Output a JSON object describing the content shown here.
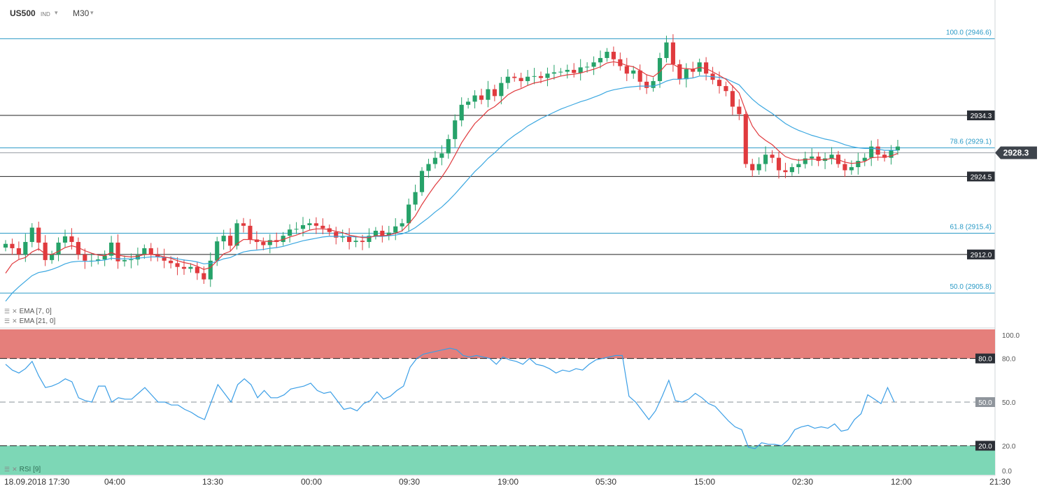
{
  "header": {
    "symbol": "US500",
    "instrument_type": "IND",
    "timeframe": "M30"
  },
  "indicators": {
    "ema_fast": "EMA [7, 0]",
    "ema_slow": "EMA [21, 0]",
    "rsi": "RSI [9]"
  },
  "icons": [
    "settings-icon",
    "close-icon",
    "dropdown-caret-icon"
  ],
  "colors": {
    "bull": "#26a269",
    "bear": "#e03a3e",
    "ema_fast": "#e03a3e",
    "ema_slow": "#3aa7e0",
    "fib": "#2a9ac6",
    "rsi_line": "#3a9ee6",
    "overbought_zone": "#e57f7b",
    "oversold_zone": "#7dd7b6"
  },
  "chart_data": [
    {
      "type": "candlestick",
      "title": "US500 M30",
      "ylim": [
        2903.8,
        2950.0
      ],
      "x_tick_labels": [
        "18.09.2018  17:30",
        "04:00",
        "13:30",
        "00:00",
        "09:30",
        "19:00",
        "05:30",
        "15:00",
        "02:30",
        "12:00",
        "21:30"
      ],
      "current_price": "2928.3",
      "horizontal_levels": [
        "2934.3",
        "2924.5",
        "2912.0"
      ],
      "fibonacci_levels": [
        {
          "label": "100.0 (2946.6)",
          "value": 2946.6
        },
        {
          "label": "78.6 (2929.1)",
          "value": 2929.1
        },
        {
          "label": "61.8 (2915.4)",
          "value": 2915.4
        },
        {
          "label": "50.0 (2905.8)",
          "value": 2905.8
        }
      ],
      "close": [
        2913.7,
        2913.0,
        2912.0,
        2914.0,
        2916.3,
        2913.9,
        2911.1,
        2912.0,
        2913.9,
        2914.9,
        2914.0,
        2912.0,
        2911.0,
        2911.0,
        2911.2,
        2911.8,
        2913.9,
        2910.9,
        2911.1,
        2911.2,
        2911.9,
        2913.0,
        2912.0,
        2911.6,
        2911.0,
        2910.6,
        2910.0,
        2909.7,
        2910.0,
        2909.0,
        2908.0,
        2911.0,
        2914.1,
        2915.0,
        2913.4,
        2917.0,
        2916.6,
        2914.4,
        2914.0,
        2913.5,
        2914.3,
        2914.0,
        2915.0,
        2916.0,
        2916.1,
        2916.7,
        2917.0,
        2916.6,
        2916.2,
        2915.6,
        2914.7,
        2914.9,
        2914.0,
        2914.2,
        2914.0,
        2915.0,
        2915.8,
        2915.0,
        2915.5,
        2916.5,
        2917.0,
        2920.0,
        2922.0,
        2925.4,
        2926.5,
        2927.5,
        2928.2,
        2930.5,
        2933.5,
        2936.0,
        2936.5,
        2937.5,
        2936.8,
        2938.5,
        2937.4,
        2939.5,
        2940.5,
        2940.3,
        2939.8,
        2940.5,
        2940.6,
        2940.3,
        2941.0,
        2941.2,
        2941.3,
        2941.6,
        2941.1,
        2942.0,
        2942.1,
        2942.8,
        2943.5,
        2944.5,
        2943.3,
        2942.2,
        2941.0,
        2941.5,
        2939.7,
        2938.7,
        2939.8,
        2943.5,
        2946.0,
        2942.5,
        2940.1,
        2941.7,
        2941.3,
        2942.8,
        2941.0,
        2940.0,
        2939.0,
        2938.2,
        2935.7,
        2934.5,
        2926.5,
        2925.5,
        2926.5,
        2928.0,
        2927.5,
        2925.5,
        2925.2,
        2926.0,
        2926.5,
        2927.4,
        2927.7,
        2927.0,
        2927.4,
        2928.0,
        2926.5,
        2925.5,
        2926.0,
        2927.0,
        2927.5,
        2929.3,
        2928.0,
        2927.5,
        2928.7,
        2929.3
      ],
      "ema_fast": [
        2909.0,
        2910.5,
        2911.2,
        2911.5,
        2912.4,
        2912.9,
        2912.1,
        2912.0,
        2912.5,
        2913.1,
        2913.4,
        2913.1,
        2912.6,
        2912.2,
        2911.9,
        2911.8,
        2912.3,
        2911.9,
        2911.7,
        2911.6,
        2911.7,
        2912.0,
        2912.0,
        2911.9,
        2911.6,
        2911.4,
        2911.0,
        2910.7,
        2910.5,
        2910.1,
        2909.6,
        2909.9,
        2911.0,
        2912.1,
        2912.5,
        2913.7,
        2914.4,
        2914.4,
        2914.3,
        2914.1,
        2914.1,
        2914.1,
        2914.4,
        2914.8,
        2915.1,
        2915.5,
        2915.9,
        2916.1,
        2916.1,
        2916.0,
        2915.7,
        2915.5,
        2915.1,
        2914.9,
        2914.7,
        2914.7,
        2915.0,
        2915.0,
        2915.1,
        2915.4,
        2915.8,
        2916.9,
        2918.2,
        2920.0,
        2921.6,
        2923.1,
        2924.4,
        2926.0,
        2927.9,
        2929.9,
        2931.5,
        2933.0,
        2934.0,
        2935.1,
        2935.7,
        2936.6,
        2937.6,
        2938.2,
        2938.6,
        2939.1,
        2939.5,
        2939.7,
        2940.0,
        2940.3,
        2940.6,
        2940.8,
        2940.9,
        2941.1,
        2941.4,
        2941.7,
        2942.1,
        2942.7,
        2942.9,
        2942.7,
        2942.3,
        2942.1,
        2941.5,
        2940.8,
        2940.5,
        2941.3,
        2942.5,
        2942.5,
        2941.9,
        2941.8,
        2941.7,
        2942.0,
        2941.8,
        2941.3,
        2940.7,
        2940.1,
        2939.0,
        2937.9,
        2935.0,
        2932.6,
        2931.1,
        2930.3,
        2929.6,
        2928.6,
        2927.7,
        2927.3,
        2927.1,
        2927.2,
        2927.3,
        2927.2,
        2927.2,
        2927.4,
        2927.2,
        2926.8,
        2926.6,
        2926.7,
        2926.9,
        2927.5,
        2927.6,
        2927.6,
        2927.8,
        2928.2
      ],
      "ema_slow": [
        2904.5,
        2905.8,
        2906.8,
        2907.7,
        2908.6,
        2909.1,
        2909.3,
        2909.6,
        2910.0,
        2910.5,
        2910.8,
        2910.9,
        2910.9,
        2910.9,
        2911.0,
        2911.1,
        2911.4,
        2911.3,
        2911.3,
        2911.3,
        2911.4,
        2911.5,
        2911.6,
        2911.6,
        2911.5,
        2911.5,
        2911.3,
        2911.1,
        2911.0,
        2910.8,
        2910.5,
        2910.6,
        2910.9,
        2911.3,
        2911.5,
        2912.0,
        2912.4,
        2912.6,
        2912.7,
        2912.8,
        2913.0,
        2913.1,
        2913.3,
        2913.6,
        2913.9,
        2914.2,
        2914.4,
        2914.6,
        2914.8,
        2914.9,
        2914.9,
        2914.9,
        2914.9,
        2914.8,
        2914.8,
        2914.8,
        2914.9,
        2914.9,
        2915.0,
        2915.1,
        2915.3,
        2915.7,
        2916.3,
        2917.1,
        2917.9,
        2918.8,
        2919.6,
        2920.6,
        2921.7,
        2922.9,
        2924.1,
        2925.3,
        2926.3,
        2927.4,
        2928.3,
        2929.3,
        2930.3,
        2931.1,
        2931.8,
        2932.6,
        2933.2,
        2933.8,
        2934.3,
        2934.8,
        2935.3,
        2935.7,
        2936.1,
        2936.5,
        2936.8,
        2937.2,
        2937.6,
        2938.1,
        2938.4,
        2938.6,
        2938.8,
        2938.9,
        2939.0,
        2939.0,
        2939.0,
        2939.3,
        2939.8,
        2940.1,
        2940.1,
        2940.2,
        2940.3,
        2940.6,
        2940.6,
        2940.5,
        2940.4,
        2940.2,
        2939.7,
        2939.2,
        2938.0,
        2936.9,
        2936.0,
        2935.3,
        2934.6,
        2933.8,
        2933.0,
        2932.4,
        2931.9,
        2931.5,
        2931.1,
        2930.8,
        2930.5,
        2930.3,
        2930.0,
        2929.6,
        2929.3,
        2929.1,
        2929.0,
        2929.0,
        2928.9,
        2928.7,
        2928.7,
        2928.7
      ]
    },
    {
      "type": "line",
      "title": "RSI [9]",
      "ylim": [
        0,
        100
      ],
      "y_tick_labels": [
        "100.0",
        "80.0",
        "50.0",
        "20.0",
        "0.0"
      ],
      "levels": [
        80,
        50,
        20
      ],
      "values": [
        76,
        72,
        70,
        73,
        78,
        68,
        60,
        61,
        63,
        66,
        64,
        53,
        51,
        50,
        61,
        61,
        50,
        53,
        52,
        52,
        56,
        60,
        55,
        50,
        50,
        48,
        48,
        45,
        43,
        40,
        38,
        50,
        62,
        56,
        50,
        62,
        66,
        62,
        53,
        58,
        53,
        53,
        55,
        59,
        60,
        61,
        63,
        58,
        56,
        57,
        51,
        45,
        46,
        44,
        49,
        51,
        57,
        52,
        54,
        58,
        61,
        74,
        80,
        83,
        84,
        85,
        86,
        87,
        86,
        82,
        81,
        82,
        81,
        80,
        76,
        81,
        79,
        78,
        76,
        80,
        76,
        75,
        73,
        70,
        72,
        71,
        73,
        72,
        76,
        79,
        80,
        81,
        82,
        82,
        54,
        50,
        44,
        38,
        44,
        54,
        65,
        51,
        50,
        52,
        56,
        53,
        49,
        47,
        42,
        37,
        33,
        31,
        19,
        18,
        22,
        21,
        21,
        20,
        24,
        31,
        33,
        34,
        32,
        33,
        32,
        35,
        30,
        31,
        38,
        42,
        55,
        52,
        49,
        60,
        50
      ]
    }
  ]
}
